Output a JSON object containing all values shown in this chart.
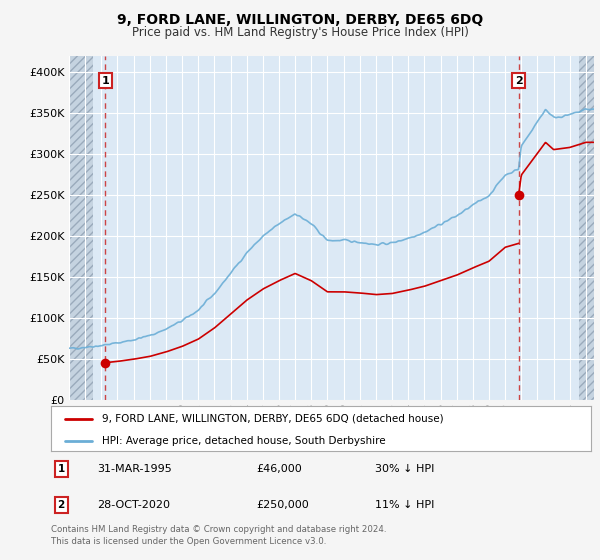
{
  "title": "9, FORD LANE, WILLINGTON, DERBY, DE65 6DQ",
  "subtitle": "Price paid vs. HM Land Registry's House Price Index (HPI)",
  "ylim": [
    0,
    420000
  ],
  "yticks": [
    0,
    50000,
    100000,
    150000,
    200000,
    250000,
    300000,
    350000,
    400000
  ],
  "ytick_labels": [
    "£0",
    "£50K",
    "£100K",
    "£150K",
    "£200K",
    "£250K",
    "£300K",
    "£350K",
    "£400K"
  ],
  "background_color": "#f5f5f5",
  "plot_bg_color": "#dce9f5",
  "grid_color": "#ffffff",
  "legend_entry1": "9, FORD LANE, WILLINGTON, DERBY, DE65 6DQ (detached house)",
  "legend_entry2": "HPI: Average price, detached house, South Derbyshire",
  "annotation1_date": "31-MAR-1995",
  "annotation1_price": "£46,000",
  "annotation1_hpi": "30% ↓ HPI",
  "annotation2_date": "28-OCT-2020",
  "annotation2_price": "£250,000",
  "annotation2_hpi": "11% ↓ HPI",
  "footer": "Contains HM Land Registry data © Crown copyright and database right 2024.\nThis data is licensed under the Open Government Licence v3.0.",
  "sale1_x": 1995.25,
  "sale1_y": 46000,
  "sale2_x": 2020.83,
  "sale2_y": 250000,
  "hpi_color": "#6baed6",
  "price_color": "#cc0000",
  "dot_color": "#cc0000",
  "vline_color": "#cc4444",
  "xmin": 1993,
  "xmax": 2025.5,
  "hatch_left_end": 1994.5,
  "hatch_right_start": 2024.6
}
